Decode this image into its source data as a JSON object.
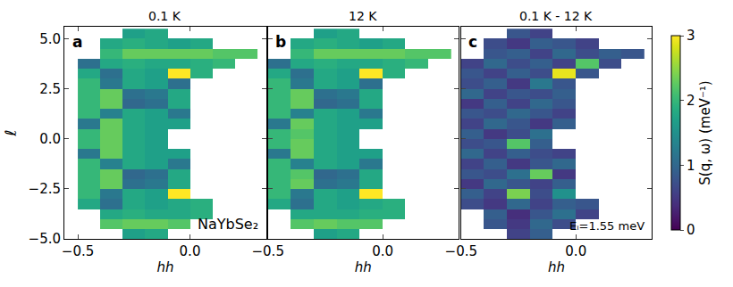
{
  "chart_data": [
    {
      "type": "heatmap",
      "title": "0.1 K",
      "label": "a",
      "xlabel": "hh",
      "ylabel": "ℓ",
      "annotations": [
        "NaYbSe₂"
      ],
      "xlim": [
        -0.56,
        0.34
      ],
      "ylim": [
        -5,
        5.6
      ],
      "xticks": [
        {
          "value": -0.5,
          "label": "−0.5"
        },
        {
          "value": 0,
          "label": "0.0"
        }
      ],
      "yticks": [
        {
          "value": -5,
          "label": "−5.0"
        },
        {
          "value": -2.5,
          "label": "−2.5"
        },
        {
          "value": 0,
          "label": "0.0"
        },
        {
          "value": 2.5,
          "label": "2.5"
        },
        {
          "value": 5,
          "label": "5.0"
        }
      ],
      "zlim": [
        0,
        3
      ],
      "x": [
        -0.45,
        -0.35,
        -0.25,
        -0.15,
        -0.05,
        0.05,
        0.15,
        0.25
      ],
      "y": [
        -4.75,
        -4.25,
        -3.75,
        -3.25,
        -2.75,
        -2.25,
        -1.75,
        -1.25,
        -0.75,
        -0.25,
        0.25,
        0.75,
        1.25,
        1.75,
        2.25,
        2.75,
        3.25,
        3.75,
        4.25,
        4.75,
        5.25
      ],
      "z": [
        [
          null,
          null,
          1.7,
          1.8,
          null,
          null,
          null,
          null
        ],
        [
          null,
          2.2,
          2.3,
          2.3,
          2.2,
          null,
          null,
          null
        ],
        [
          null,
          1.8,
          1.9,
          1.8,
          1.8,
          1.9,
          null,
          null
        ],
        [
          1.8,
          1.1,
          1.8,
          1.7,
          1.8,
          1.9,
          null,
          null
        ],
        [
          2.0,
          1.2,
          1.8,
          1.7,
          3.2,
          null,
          null,
          null
        ],
        [
          2.0,
          2.3,
          1.1,
          1.2,
          1.8,
          null,
          null,
          null
        ],
        [
          2.0,
          2.3,
          1.0,
          1.1,
          1.8,
          null,
          null,
          null
        ],
        [
          2.0,
          1.3,
          1.8,
          1.7,
          1.2,
          null,
          null,
          null
        ],
        [
          1.2,
          2.3,
          1.8,
          1.7,
          1.7,
          null,
          null,
          null
        ],
        [
          2.0,
          2.3,
          1.8,
          1.7,
          null,
          null,
          null,
          null
        ],
        [
          2.0,
          2.3,
          1.8,
          1.7,
          null,
          null,
          null,
          null
        ],
        [
          1.2,
          2.3,
          1.8,
          1.7,
          1.7,
          null,
          null,
          null
        ],
        [
          2.0,
          1.3,
          1.8,
          1.7,
          1.2,
          null,
          null,
          null
        ],
        [
          2.0,
          2.3,
          1.0,
          1.1,
          1.8,
          null,
          null,
          null
        ],
        [
          2.0,
          2.3,
          1.1,
          1.2,
          1.8,
          null,
          null,
          null
        ],
        [
          2.0,
          1.2,
          1.8,
          1.7,
          1.1,
          null,
          null,
          null
        ],
        [
          1.8,
          1.1,
          1.8,
          1.7,
          3.2,
          1.9,
          null,
          null
        ],
        [
          1.1,
          1.8,
          1.9,
          1.8,
          1.8,
          1.9,
          2.0,
          null
        ],
        [
          null,
          2.0,
          2.3,
          2.3,
          2.3,
          2.3,
          2.2,
          2.2
        ],
        [
          null,
          1.8,
          1.9,
          1.8,
          1.7,
          1.8,
          null,
          null
        ],
        [
          null,
          null,
          1.7,
          1.8,
          null,
          null,
          null,
          null
        ]
      ]
    },
    {
      "type": "heatmap",
      "title": "12 K",
      "label": "b",
      "xlabel": "hh",
      "tick_labels": "x",
      "xlim": [
        -0.5,
        0.33
      ],
      "ylim": [
        -5,
        5.6
      ],
      "xticks": [
        {
          "value": -0.5,
          "label": "−0.5"
        },
        {
          "value": 0,
          "label": "0.0"
        }
      ],
      "yticks": [
        {
          "value": -5,
          "label": "−5.0"
        },
        {
          "value": -2.5,
          "label": "−2.5"
        },
        {
          "value": 0,
          "label": "0.0"
        },
        {
          "value": 2.5,
          "label": "2.5"
        },
        {
          "value": 5,
          "label": "5.0"
        }
      ],
      "zlim": [
        0,
        3
      ],
      "x": [
        -0.45,
        -0.35,
        -0.25,
        -0.15,
        -0.05,
        0.05,
        0.15,
        0.25
      ],
      "y": [
        -4.75,
        -4.25,
        -3.75,
        -3.25,
        -2.75,
        -2.25,
        -1.75,
        -1.25,
        -0.75,
        -0.25,
        0.25,
        0.75,
        1.25,
        1.75,
        2.25,
        2.75,
        3.25,
        3.75,
        4.25,
        4.75,
        5.25
      ],
      "z": [
        [
          null,
          null,
          1.7,
          1.8,
          null,
          null,
          null,
          null
        ],
        [
          null,
          2.2,
          2.3,
          2.2,
          2.2,
          null,
          null,
          null
        ],
        [
          null,
          1.8,
          1.8,
          1.8,
          1.9,
          1.9,
          null,
          null
        ],
        [
          1.8,
          1.1,
          1.8,
          1.7,
          1.8,
          1.9,
          null,
          null
        ],
        [
          2.0,
          1.2,
          1.8,
          1.7,
          3.2,
          null,
          null,
          null
        ],
        [
          2.0,
          2.3,
          1.1,
          1.2,
          1.8,
          null,
          null,
          null
        ],
        [
          2.0,
          2.2,
          1.0,
          1.1,
          1.8,
          null,
          null,
          null
        ],
        [
          2.0,
          1.3,
          1.8,
          1.7,
          1.2,
          null,
          null,
          null
        ],
        [
          1.2,
          2.3,
          1.8,
          1.7,
          1.7,
          null,
          null,
          null
        ],
        [
          2.0,
          2.3,
          1.8,
          1.7,
          null,
          null,
          null,
          null
        ],
        [
          2.0,
          2.2,
          1.8,
          1.7,
          null,
          null,
          null,
          null
        ],
        [
          1.2,
          2.3,
          1.8,
          1.7,
          1.7,
          null,
          null,
          null
        ],
        [
          2.0,
          1.3,
          1.8,
          1.7,
          1.2,
          null,
          null,
          null
        ],
        [
          2.0,
          2.3,
          1.0,
          1.1,
          1.8,
          null,
          null,
          null
        ],
        [
          2.0,
          2.3,
          1.1,
          1.2,
          1.8,
          null,
          null,
          null
        ],
        [
          2.0,
          1.2,
          1.8,
          1.7,
          1.1,
          null,
          null,
          null
        ],
        [
          1.8,
          1.1,
          1.8,
          1.7,
          3.2,
          1.9,
          null,
          null
        ],
        [
          1.1,
          1.8,
          1.9,
          1.8,
          1.8,
          1.9,
          2.0,
          null
        ],
        [
          null,
          2.0,
          2.3,
          2.3,
          2.3,
          2.3,
          2.2,
          2.2
        ],
        [
          null,
          1.8,
          1.9,
          1.8,
          1.7,
          1.8,
          null,
          null
        ],
        [
          null,
          null,
          1.7,
          1.8,
          null,
          null,
          null,
          null
        ]
      ]
    },
    {
      "type": "heatmap",
      "title": "0.1 K - 12 K",
      "label": "c",
      "xlabel": "hh",
      "tick_labels": "x",
      "annotations": [
        "Eᵢ=1.55 meV"
      ],
      "xlim": [
        -0.5,
        0.33
      ],
      "ylim": [
        -5,
        5.6
      ],
      "xticks": [
        {
          "value": -0.5,
          "label": "−0.5"
        },
        {
          "value": 0,
          "label": "0.0"
        }
      ],
      "yticks": [
        {
          "value": -5,
          "label": "−5.0"
        },
        {
          "value": -2.5,
          "label": "−2.5"
        },
        {
          "value": 0,
          "label": "0.0"
        },
        {
          "value": 2.5,
          "label": "2.5"
        },
        {
          "value": 5,
          "label": "5.0"
        }
      ],
      "zlim": [
        0,
        3
      ],
      "colorbar": {
        "title": "S(q, ω) (meV⁻¹)",
        "ticks": [
          0,
          1,
          2,
          3
        ]
      },
      "x": [
        -0.45,
        -0.35,
        -0.25,
        -0.15,
        -0.05,
        0.05,
        0.15,
        0.25
      ],
      "y": [
        -4.75,
        -4.25,
        -3.75,
        -3.25,
        -2.75,
        -2.25,
        -1.75,
        -1.25,
        -0.75,
        -0.25,
        0.25,
        0.75,
        1.25,
        1.75,
        2.25,
        2.75,
        3.25,
        3.75,
        4.25,
        4.75,
        5.25
      ],
      "z": [
        [
          null,
          null,
          0.6,
          0.9,
          null,
          null,
          null,
          null
        ],
        [
          null,
          0.8,
          0.5,
          1.0,
          0.7,
          null,
          null,
          null
        ],
        [
          null,
          0.9,
          0.4,
          0.8,
          1.1,
          0.6,
          null,
          null
        ],
        [
          0.7,
          0.5,
          1.0,
          0.6,
          0.9,
          0.8,
          null,
          null
        ],
        [
          0.9,
          0.6,
          2.4,
          0.7,
          1.5,
          null,
          null,
          null
        ],
        [
          0.5,
          1.0,
          0.8,
          0.6,
          0.9,
          null,
          null,
          null
        ],
        [
          0.8,
          0.7,
          1.1,
          2.3,
          0.5,
          null,
          null,
          null
        ],
        [
          0.6,
          0.9,
          0.5,
          0.8,
          1.0,
          null,
          null,
          null
        ],
        [
          1.0,
          0.6,
          0.9,
          0.7,
          0.6,
          null,
          null,
          null
        ],
        [
          0.7,
          0.8,
          2.2,
          0.9,
          null,
          null,
          null,
          null
        ],
        [
          0.9,
          0.5,
          0.7,
          1.1,
          null,
          null,
          null,
          null
        ],
        [
          0.6,
          1.0,
          0.8,
          0.5,
          0.9,
          null,
          null,
          null
        ],
        [
          0.8,
          0.7,
          1.0,
          0.8,
          0.6,
          null,
          null,
          null
        ],
        [
          0.5,
          0.9,
          0.6,
          1.0,
          0.8,
          null,
          null,
          null
        ],
        [
          1.0,
          0.6,
          0.8,
          0.7,
          0.9,
          null,
          null,
          null
        ],
        [
          0.7,
          0.9,
          0.5,
          1.2,
          0.8,
          null,
          null,
          null
        ],
        [
          0.8,
          0.6,
          0.9,
          0.7,
          2.9,
          0.8,
          null,
          null
        ],
        [
          0.6,
          1.0,
          0.7,
          0.9,
          0.6,
          2.2,
          0.7,
          null
        ],
        [
          null,
          0.8,
          0.9,
          0.6,
          1.0,
          0.7,
          0.9,
          0.8
        ],
        [
          null,
          0.7,
          0.5,
          0.9,
          0.8,
          0.6,
          null,
          null
        ],
        [
          null,
          null,
          0.8,
          0.6,
          null,
          null,
          null,
          null
        ]
      ]
    }
  ]
}
